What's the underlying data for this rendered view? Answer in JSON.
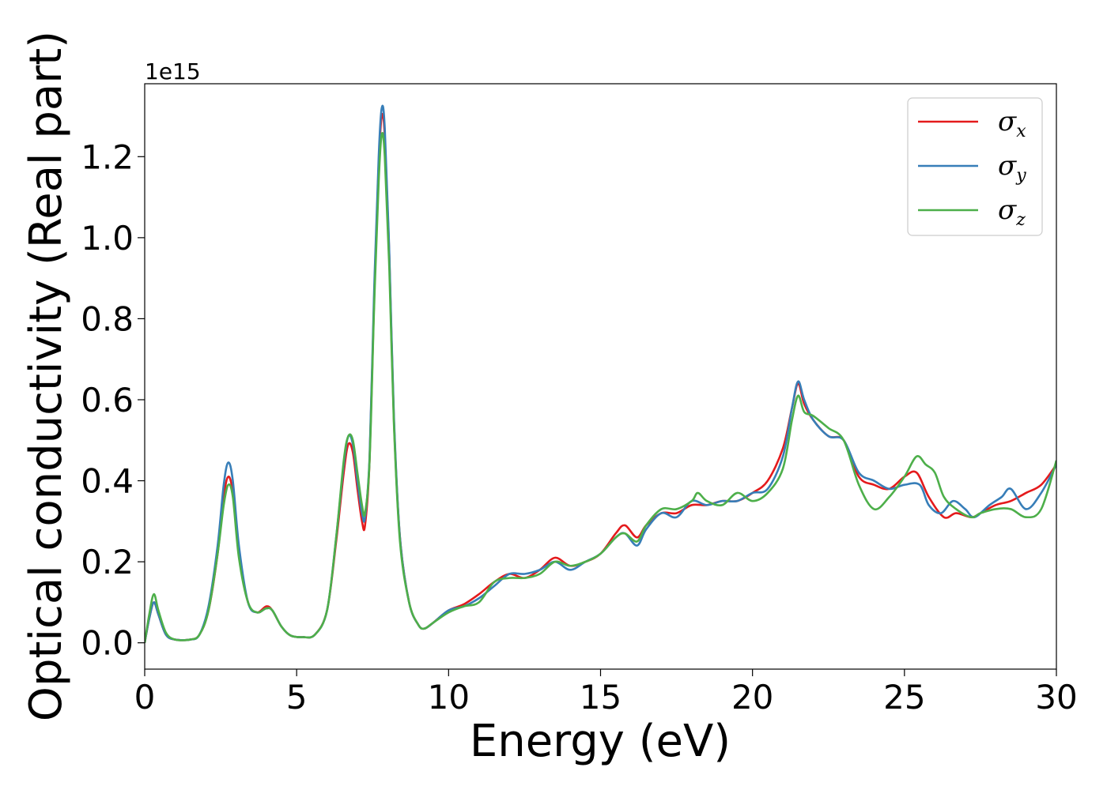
{
  "chart_data": {
    "type": "line",
    "title": "",
    "xlabel": "Energy (eV)",
    "ylabel": "Optical conductivity (Real part)",
    "y_offset_text": "1e15",
    "xlim": [
      0,
      30
    ],
    "ylim": [
      -0.065,
      1.38
    ],
    "y_multiplier": 1000000000000000.0,
    "xticks": [
      0,
      5,
      10,
      15,
      20,
      25,
      30
    ],
    "xtick_labels": [
      "0",
      "5",
      "10",
      "15",
      "20",
      "25",
      "30"
    ],
    "yticks": [
      0.0,
      0.2,
      0.4,
      0.6,
      0.8,
      1.0,
      1.2
    ],
    "ytick_labels": [
      "0.0",
      "0.2",
      "0.4",
      "0.6",
      "0.8",
      "1.0",
      "1.2"
    ],
    "grid": false,
    "legend_position": "top-right",
    "series": [
      {
        "name": "σx",
        "legend_symbol": "σ",
        "legend_subscript": "x",
        "color": "#e41a1c",
        "points": [
          [
            0,
            0
          ],
          [
            0.15,
            0.06
          ],
          [
            0.3,
            0.1
          ],
          [
            0.45,
            0.07
          ],
          [
            0.7,
            0.02
          ],
          [
            1.0,
            0.008
          ],
          [
            1.5,
            0.008
          ],
          [
            1.8,
            0.02
          ],
          [
            2.1,
            0.08
          ],
          [
            2.4,
            0.22
          ],
          [
            2.6,
            0.36
          ],
          [
            2.75,
            0.41
          ],
          [
            2.9,
            0.37
          ],
          [
            3.1,
            0.22
          ],
          [
            3.4,
            0.1
          ],
          [
            3.7,
            0.075
          ],
          [
            4.0,
            0.09
          ],
          [
            4.2,
            0.08
          ],
          [
            4.5,
            0.04
          ],
          [
            4.8,
            0.018
          ],
          [
            5.2,
            0.014
          ],
          [
            5.6,
            0.02
          ],
          [
            6.0,
            0.08
          ],
          [
            6.3,
            0.25
          ],
          [
            6.55,
            0.42
          ],
          [
            6.7,
            0.49
          ],
          [
            6.85,
            0.47
          ],
          [
            7.0,
            0.38
          ],
          [
            7.15,
            0.3
          ],
          [
            7.25,
            0.29
          ],
          [
            7.4,
            0.45
          ],
          [
            7.55,
            0.85
          ],
          [
            7.7,
            1.18
          ],
          [
            7.8,
            1.3
          ],
          [
            7.9,
            1.25
          ],
          [
            8.05,
            0.95
          ],
          [
            8.2,
            0.55
          ],
          [
            8.4,
            0.26
          ],
          [
            8.7,
            0.1
          ],
          [
            9.0,
            0.045
          ],
          [
            9.2,
            0.035
          ],
          [
            9.5,
            0.05
          ],
          [
            10.0,
            0.08
          ],
          [
            10.5,
            0.095
          ],
          [
            11.0,
            0.12
          ],
          [
            11.5,
            0.15
          ],
          [
            12.0,
            0.17
          ],
          [
            12.5,
            0.16
          ],
          [
            13.0,
            0.18
          ],
          [
            13.5,
            0.21
          ],
          [
            14.0,
            0.19
          ],
          [
            14.5,
            0.2
          ],
          [
            15.0,
            0.22
          ],
          [
            15.5,
            0.27
          ],
          [
            15.8,
            0.29
          ],
          [
            16.2,
            0.26
          ],
          [
            16.5,
            0.29
          ],
          [
            17.0,
            0.32
          ],
          [
            17.5,
            0.32
          ],
          [
            18.0,
            0.34
          ],
          [
            18.5,
            0.34
          ],
          [
            19.0,
            0.35
          ],
          [
            19.5,
            0.35
          ],
          [
            20.0,
            0.37
          ],
          [
            20.5,
            0.4
          ],
          [
            21.0,
            0.48
          ],
          [
            21.3,
            0.58
          ],
          [
            21.5,
            0.64
          ],
          [
            21.7,
            0.59
          ],
          [
            22.0,
            0.55
          ],
          [
            22.5,
            0.51
          ],
          [
            23.0,
            0.5
          ],
          [
            23.5,
            0.41
          ],
          [
            24.0,
            0.39
          ],
          [
            24.5,
            0.38
          ],
          [
            25.0,
            0.41
          ],
          [
            25.4,
            0.42
          ],
          [
            25.8,
            0.36
          ],
          [
            26.3,
            0.31
          ],
          [
            26.7,
            0.32
          ],
          [
            27.2,
            0.31
          ],
          [
            27.5,
            0.32
          ],
          [
            28.0,
            0.34
          ],
          [
            28.5,
            0.35
          ],
          [
            29.0,
            0.37
          ],
          [
            29.5,
            0.39
          ],
          [
            30.0,
            0.44
          ]
        ]
      },
      {
        "name": "σy",
        "legend_symbol": "σ",
        "legend_subscript": "y",
        "color": "#377eb8",
        "points": [
          [
            0,
            0
          ],
          [
            0.15,
            0.06
          ],
          [
            0.3,
            0.1
          ],
          [
            0.45,
            0.07
          ],
          [
            0.7,
            0.02
          ],
          [
            1.0,
            0.008
          ],
          [
            1.5,
            0.008
          ],
          [
            1.8,
            0.02
          ],
          [
            2.1,
            0.09
          ],
          [
            2.4,
            0.24
          ],
          [
            2.6,
            0.39
          ],
          [
            2.75,
            0.445
          ],
          [
            2.9,
            0.4
          ],
          [
            3.1,
            0.24
          ],
          [
            3.4,
            0.1
          ],
          [
            3.7,
            0.075
          ],
          [
            4.0,
            0.085
          ],
          [
            4.2,
            0.08
          ],
          [
            4.5,
            0.04
          ],
          [
            4.8,
            0.018
          ],
          [
            5.2,
            0.014
          ],
          [
            5.6,
            0.02
          ],
          [
            6.0,
            0.08
          ],
          [
            6.3,
            0.26
          ],
          [
            6.55,
            0.44
          ],
          [
            6.7,
            0.51
          ],
          [
            6.85,
            0.49
          ],
          [
            7.0,
            0.4
          ],
          [
            7.15,
            0.32
          ],
          [
            7.25,
            0.31
          ],
          [
            7.4,
            0.46
          ],
          [
            7.55,
            0.87
          ],
          [
            7.7,
            1.2
          ],
          [
            7.8,
            1.32
          ],
          [
            7.9,
            1.27
          ],
          [
            8.05,
            0.96
          ],
          [
            8.2,
            0.56
          ],
          [
            8.4,
            0.26
          ],
          [
            8.7,
            0.1
          ],
          [
            9.0,
            0.045
          ],
          [
            9.2,
            0.035
          ],
          [
            9.5,
            0.05
          ],
          [
            10.0,
            0.08
          ],
          [
            10.5,
            0.09
          ],
          [
            11.0,
            0.11
          ],
          [
            11.5,
            0.14
          ],
          [
            12.0,
            0.17
          ],
          [
            12.5,
            0.17
          ],
          [
            13.0,
            0.18
          ],
          [
            13.5,
            0.2
          ],
          [
            14.0,
            0.18
          ],
          [
            14.5,
            0.2
          ],
          [
            15.0,
            0.22
          ],
          [
            15.5,
            0.26
          ],
          [
            15.8,
            0.27
          ],
          [
            16.2,
            0.24
          ],
          [
            16.5,
            0.28
          ],
          [
            17.0,
            0.32
          ],
          [
            17.5,
            0.31
          ],
          [
            18.0,
            0.35
          ],
          [
            18.5,
            0.34
          ],
          [
            19.0,
            0.35
          ],
          [
            19.5,
            0.35
          ],
          [
            20.0,
            0.37
          ],
          [
            20.5,
            0.38
          ],
          [
            21.0,
            0.46
          ],
          [
            21.3,
            0.58
          ],
          [
            21.5,
            0.645
          ],
          [
            21.7,
            0.6
          ],
          [
            22.0,
            0.55
          ],
          [
            22.5,
            0.51
          ],
          [
            23.0,
            0.5
          ],
          [
            23.5,
            0.42
          ],
          [
            24.0,
            0.4
          ],
          [
            24.5,
            0.38
          ],
          [
            25.0,
            0.39
          ],
          [
            25.5,
            0.39
          ],
          [
            25.8,
            0.34
          ],
          [
            26.2,
            0.32
          ],
          [
            26.6,
            0.35
          ],
          [
            27.0,
            0.33
          ],
          [
            27.3,
            0.31
          ],
          [
            27.8,
            0.34
          ],
          [
            28.2,
            0.36
          ],
          [
            28.5,
            0.38
          ],
          [
            29.0,
            0.33
          ],
          [
            29.5,
            0.37
          ],
          [
            30.0,
            0.44
          ]
        ]
      },
      {
        "name": "σz",
        "legend_symbol": "σ",
        "legend_subscript": "z",
        "color": "#4daf4a",
        "points": [
          [
            0,
            0
          ],
          [
            0.15,
            0.07
          ],
          [
            0.3,
            0.12
          ],
          [
            0.45,
            0.08
          ],
          [
            0.7,
            0.025
          ],
          [
            1.0,
            0.008
          ],
          [
            1.5,
            0.008
          ],
          [
            1.8,
            0.02
          ],
          [
            2.1,
            0.08
          ],
          [
            2.4,
            0.22
          ],
          [
            2.6,
            0.34
          ],
          [
            2.75,
            0.39
          ],
          [
            2.9,
            0.36
          ],
          [
            3.1,
            0.21
          ],
          [
            3.4,
            0.1
          ],
          [
            3.7,
            0.075
          ],
          [
            4.0,
            0.085
          ],
          [
            4.2,
            0.08
          ],
          [
            4.5,
            0.04
          ],
          [
            4.8,
            0.018
          ],
          [
            5.2,
            0.014
          ],
          [
            5.6,
            0.02
          ],
          [
            6.0,
            0.08
          ],
          [
            6.3,
            0.26
          ],
          [
            6.55,
            0.45
          ],
          [
            6.7,
            0.51
          ],
          [
            6.85,
            0.5
          ],
          [
            7.0,
            0.42
          ],
          [
            7.15,
            0.34
          ],
          [
            7.25,
            0.32
          ],
          [
            7.4,
            0.45
          ],
          [
            7.55,
            0.83
          ],
          [
            7.7,
            1.14
          ],
          [
            7.8,
            1.255
          ],
          [
            7.9,
            1.2
          ],
          [
            8.05,
            0.92
          ],
          [
            8.2,
            0.54
          ],
          [
            8.4,
            0.25
          ],
          [
            8.7,
            0.1
          ],
          [
            9.0,
            0.045
          ],
          [
            9.2,
            0.035
          ],
          [
            9.5,
            0.05
          ],
          [
            10.0,
            0.075
          ],
          [
            10.5,
            0.09
          ],
          [
            11.0,
            0.1
          ],
          [
            11.5,
            0.15
          ],
          [
            12.0,
            0.16
          ],
          [
            12.5,
            0.16
          ],
          [
            13.0,
            0.17
          ],
          [
            13.5,
            0.2
          ],
          [
            14.0,
            0.19
          ],
          [
            14.5,
            0.2
          ],
          [
            15.0,
            0.22
          ],
          [
            15.5,
            0.26
          ],
          [
            15.8,
            0.27
          ],
          [
            16.2,
            0.25
          ],
          [
            16.5,
            0.29
          ],
          [
            17.0,
            0.33
          ],
          [
            17.5,
            0.33
          ],
          [
            18.0,
            0.35
          ],
          [
            18.2,
            0.37
          ],
          [
            18.5,
            0.35
          ],
          [
            19.0,
            0.34
          ],
          [
            19.5,
            0.37
          ],
          [
            20.0,
            0.35
          ],
          [
            20.5,
            0.37
          ],
          [
            21.0,
            0.43
          ],
          [
            21.3,
            0.55
          ],
          [
            21.5,
            0.61
          ],
          [
            21.7,
            0.57
          ],
          [
            22.0,
            0.56
          ],
          [
            22.5,
            0.53
          ],
          [
            23.0,
            0.5
          ],
          [
            23.5,
            0.39
          ],
          [
            24.0,
            0.33
          ],
          [
            24.5,
            0.36
          ],
          [
            25.0,
            0.41
          ],
          [
            25.4,
            0.46
          ],
          [
            25.7,
            0.44
          ],
          [
            26.0,
            0.42
          ],
          [
            26.3,
            0.36
          ],
          [
            26.7,
            0.33
          ],
          [
            27.2,
            0.31
          ],
          [
            27.5,
            0.32
          ],
          [
            28.0,
            0.33
          ],
          [
            28.5,
            0.33
          ],
          [
            29.0,
            0.31
          ],
          [
            29.5,
            0.33
          ],
          [
            30.0,
            0.45
          ]
        ]
      }
    ]
  }
}
